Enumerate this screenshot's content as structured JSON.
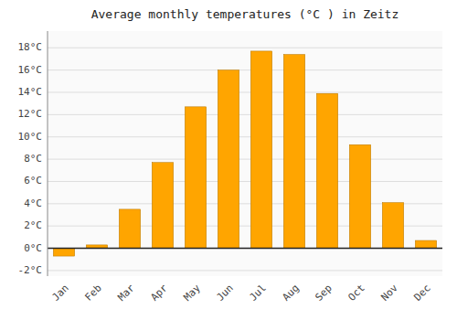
{
  "chart_data": {
    "type": "bar",
    "title": "Average monthly temperatures (°C ) in Zeitz",
    "categories": [
      "Jan",
      "Feb",
      "Mar",
      "Apr",
      "May",
      "Jun",
      "Jul",
      "Aug",
      "Sep",
      "Oct",
      "Nov",
      "Dec"
    ],
    "values": [
      -0.7,
      0.3,
      3.5,
      7.7,
      12.7,
      16.0,
      17.7,
      17.4,
      13.9,
      9.3,
      4.1,
      0.7
    ],
    "color": "#FFA500",
    "ylim": [
      -2.5,
      19.5
    ],
    "yticks": [
      {
        "value": -2,
        "label": "-2°C"
      },
      {
        "value": 0,
        "label": "0°C"
      },
      {
        "value": 2,
        "label": "2°C"
      },
      {
        "value": 4,
        "label": "4°C"
      },
      {
        "value": 6,
        "label": "6°C"
      },
      {
        "value": 8,
        "label": "8°C"
      },
      {
        "value": 10,
        "label": "10°C"
      },
      {
        "value": 12,
        "label": "12°C"
      },
      {
        "value": 14,
        "label": "14°C"
      },
      {
        "value": 16,
        "label": "16°C"
      },
      {
        "value": 18,
        "label": "18°C"
      }
    ],
    "grid": true
  }
}
